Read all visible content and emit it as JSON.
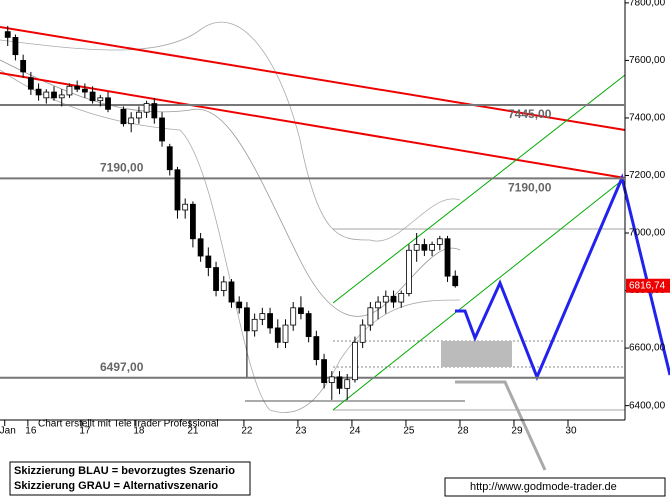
{
  "chart_data": {
    "type": "candlestick",
    "x": [
      1,
      2,
      3,
      4,
      5,
      6,
      7,
      8,
      9,
      10,
      11,
      12,
      13,
      14,
      16,
      17,
      18,
      19,
      20,
      21,
      22,
      23,
      24,
      25,
      26,
      27,
      28,
      29,
      30,
      31,
      32,
      33,
      34,
      35,
      36,
      37,
      38,
      39,
      40,
      41,
      42,
      43,
      44,
      45,
      46,
      47,
      48,
      49,
      50,
      51,
      52,
      53,
      54,
      55,
      56,
      57,
      58,
      59
    ],
    "open": [
      7700,
      7680,
      7600,
      7540,
      7500,
      7470,
      7490,
      7470,
      7480,
      7510,
      7500,
      7490,
      7460,
      7470,
      7430,
      7380,
      7400,
      7420,
      7450,
      7400,
      7300,
      7220,
      7080,
      7100,
      6980,
      6920,
      6880,
      6800,
      6830,
      6760,
      6740,
      6660,
      6700,
      6720,
      6670,
      6620,
      6680,
      6740,
      6720,
      6640,
      6560,
      6480,
      6500,
      6460,
      6490,
      6620,
      6680,
      6740,
      6760,
      6780,
      6760,
      6790,
      6940,
      6960,
      6940,
      6960,
      6980,
      6850
    ],
    "high": [
      7720,
      7690,
      7620,
      7560,
      7520,
      7500,
      7510,
      7500,
      7520,
      7530,
      7520,
      7510,
      7480,
      7490,
      7440,
      7420,
      7440,
      7460,
      7470,
      7420,
      7310,
      7230,
      7120,
      7110,
      7000,
      6950,
      6900,
      6850,
      6840,
      6780,
      6760,
      6720,
      6740,
      6740,
      6700,
      6700,
      6760,
      6780,
      6730,
      6660,
      6580,
      6520,
      6520,
      6510,
      6640,
      6700,
      6760,
      6780,
      6800,
      6800,
      6800,
      6960,
      7000,
      6980,
      6970,
      6990,
      6990,
      6870
    ],
    "low": [
      7650,
      7600,
      7540,
      7480,
      7460,
      7450,
      7460,
      7440,
      7470,
      7490,
      7470,
      7450,
      7440,
      7420,
      7370,
      7350,
      7380,
      7400,
      7380,
      7300,
      7200,
      7050,
      7050,
      6950,
      6900,
      6850,
      6780,
      6780,
      6740,
      6720,
      6500,
      6640,
      6680,
      6650,
      6600,
      6600,
      6660,
      6700,
      6620,
      6540,
      6460,
      6420,
      6440,
      6420,
      6480,
      6600,
      6660,
      6700,
      6720,
      6740,
      6740,
      6780,
      6900,
      6920,
      6920,
      6940,
      6830,
      6810
    ],
    "close": [
      7680,
      7620,
      7560,
      7500,
      7480,
      7490,
      7470,
      7480,
      7510,
      7500,
      7490,
      7460,
      7470,
      7430,
      7380,
      7400,
      7420,
      7450,
      7400,
      7320,
      7220,
      7080,
      7100,
      6980,
      6920,
      6880,
      6800,
      6830,
      6760,
      6740,
      6660,
      6700,
      6720,
      6670,
      6620,
      6680,
      6740,
      6720,
      6640,
      6560,
      6480,
      6500,
      6460,
      6490,
      6620,
      6680,
      6740,
      6760,
      6780,
      6760,
      6790,
      6940,
      6960,
      6940,
      6960,
      6980,
      6850,
      6816.74
    ],
    "xlim": [
      0,
      81
    ],
    "xticks": [
      {
        "value": 1,
        "label": "Jan"
      },
      {
        "value": 4,
        "label": "16"
      },
      {
        "value": 11,
        "label": "17"
      },
      {
        "value": 18,
        "label": "18"
      },
      {
        "value": 25,
        "label": "21"
      },
      {
        "value": 32,
        "label": "22"
      },
      {
        "value": 39,
        "label": "23"
      },
      {
        "value": 46,
        "label": "24"
      },
      {
        "value": 53,
        "label": "25"
      },
      {
        "value": 60,
        "label": "28"
      },
      {
        "value": 67,
        "label": "29"
      },
      {
        "value": 74,
        "label": "30"
      }
    ],
    "ylim": [
      6350,
      7810
    ],
    "yticks": [
      {
        "value": 6400,
        "label": "6400,00"
      },
      {
        "value": 6600,
        "label": "6600,00"
      },
      {
        "value": 6800,
        "label": "6800,00"
      },
      {
        "value": 7000,
        "label": "7000,00"
      },
      {
        "value": 7200,
        "label": "7200,00"
      },
      {
        "value": 7400,
        "label": "7400,00"
      },
      {
        "value": 7600,
        "label": "7600,00"
      },
      {
        "value": 7800,
        "label": "7800,00"
      }
    ],
    "levels": [
      {
        "value": 7445,
        "label": "7445,00"
      },
      {
        "value": 7190,
        "label": "7190,00"
      },
      {
        "value": 6497,
        "label": "6497,00"
      }
    ],
    "last_price": {
      "value": 6816.74,
      "label": "6816,74"
    }
  },
  "credit": "Chart erstellt mit TeleTrader Professional",
  "notes": [
    "Skizzierung BLAU = bevorzugtes Szenario",
    "Skizzierung GRAU = Alternativszenario"
  ],
  "url": "http://www.godmode-trader.de"
}
